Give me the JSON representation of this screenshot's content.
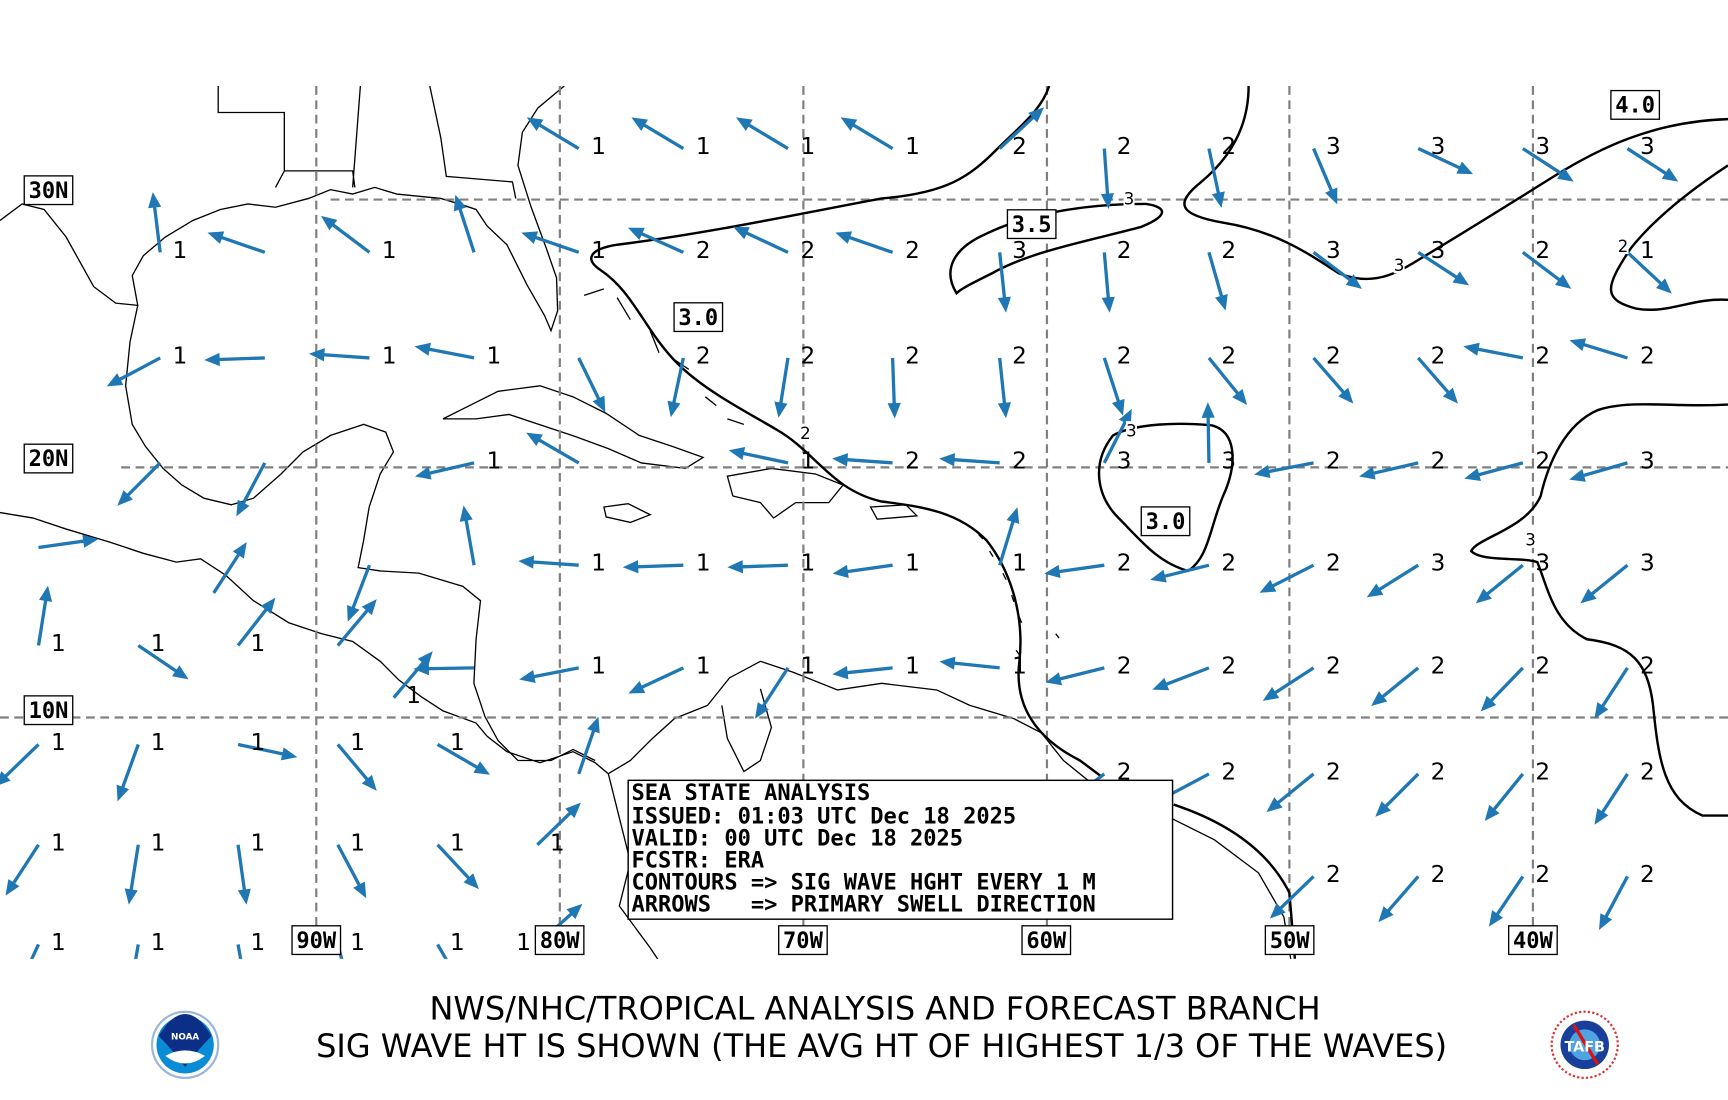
{
  "colors": {
    "arrow": "#1f77b4",
    "contour": "#000000",
    "grid": "#808080"
  },
  "map": {
    "lat_labels": [
      {
        "text": "30N",
        "lat": 30
      },
      {
        "text": "20N",
        "lat": 20
      },
      {
        "text": "10N",
        "lat": 10
      }
    ],
    "lon_labels": [
      {
        "text": "90W",
        "lon": 90
      },
      {
        "text": "80W",
        "lon": 80
      },
      {
        "text": "70W",
        "lon": 70
      },
      {
        "text": "60W",
        "lon": 60
      },
      {
        "text": "50W",
        "lon": 50
      },
      {
        "text": "40W",
        "lon": 40
      }
    ],
    "contour_box_labels": [
      {
        "text": "3.0",
        "lon": 74.3,
        "lat": 25.7
      },
      {
        "text": "3.5",
        "lon": 60.6,
        "lat": 29.1
      },
      {
        "text": "3.0",
        "lon": 55.1,
        "lat": 17.9
      },
      {
        "text": "4.0",
        "lon": 35.8,
        "lat": 33.3
      }
    ],
    "contour_inline_labels": [
      {
        "text": "3",
        "lon": 56.6,
        "lat": 30.0
      },
      {
        "text": "3",
        "lon": 45.5,
        "lat": 27.6
      },
      {
        "text": "3",
        "lon": 56.5,
        "lat": 21.4
      },
      {
        "text": "3",
        "lon": 40.1,
        "lat": 16.9
      },
      {
        "text": "2",
        "lon": 69.9,
        "lat": 21.3
      },
      {
        "text": "2",
        "lon": 36.3,
        "lat": 28.3
      }
    ],
    "wave_points_note_fields": [
      "lon_W",
      "sig_wave_height_m",
      "swell_direction_toward_deg"
    ],
    "wave_rows": [
      {
        "lat": 31.9,
        "points": [
          [
            78.4,
            "1",
            301
          ],
          [
            74.1,
            "1",
            301
          ],
          [
            69.8,
            "1",
            301
          ],
          [
            65.5,
            "1",
            301
          ],
          [
            61.1,
            "2",
            47
          ],
          [
            56.8,
            "2",
            176
          ],
          [
            52.5,
            "2",
            168
          ],
          [
            48.2,
            "3",
            157
          ],
          [
            43.9,
            "3",
            115
          ],
          [
            39.6,
            "3",
            123
          ],
          [
            35.3,
            "3",
            123
          ]
        ]
      },
      {
        "lat": 28.2,
        "points": [
          [
            95.6,
            "1",
            353
          ],
          [
            91.3,
            "",
            289
          ],
          [
            87.0,
            "1",
            307
          ],
          [
            82.7,
            "",
            342
          ],
          [
            78.4,
            "1",
            289
          ],
          [
            74.1,
            "2",
            294
          ],
          [
            69.8,
            "2",
            295
          ],
          [
            65.5,
            "2",
            289
          ],
          [
            61.1,
            "3",
            174
          ],
          [
            56.8,
            "2",
            175
          ],
          [
            52.5,
            "2",
            164
          ],
          [
            48.2,
            "3",
            127
          ],
          [
            43.9,
            "3",
            123
          ],
          [
            39.6,
            "2",
            127
          ],
          [
            35.3,
            "1",
            133
          ]
        ]
      },
      {
        "lat": 24.3,
        "points": [
          [
            95.6,
            "1",
            242
          ],
          [
            91.3,
            "",
            268
          ],
          [
            87.0,
            "1",
            274
          ],
          [
            82.7,
            "1",
            281
          ],
          [
            78.4,
            "",
            154
          ],
          [
            74.1,
            "2",
            192
          ],
          [
            69.8,
            "2",
            189
          ],
          [
            65.5,
            "2",
            178
          ],
          [
            61.1,
            "2",
            174
          ],
          [
            56.8,
            "2",
            162
          ],
          [
            52.5,
            "2",
            141
          ],
          [
            48.2,
            "2",
            139
          ],
          [
            43.9,
            "2",
            139
          ],
          [
            39.6,
            "2",
            281
          ],
          [
            35.3,
            "2",
            287
          ]
        ]
      },
      {
        "lat": 20.3,
        "points": [
          [
            95.6,
            "",
            225
          ],
          [
            91.3,
            "",
            208
          ],
          [
            82.7,
            "1",
            257
          ],
          [
            78.4,
            "",
            300
          ],
          [
            69.8,
            "1",
            282
          ],
          [
            65.5,
            "2",
            274
          ],
          [
            61.1,
            "2",
            274
          ],
          [
            56.8,
            "3",
            27
          ],
          [
            52.5,
            "3",
            359
          ],
          [
            48.2,
            "2",
            259
          ],
          [
            43.9,
            "2",
            257
          ],
          [
            39.6,
            "2",
            255
          ],
          [
            35.3,
            "3",
            254
          ]
        ]
      },
      {
        "lat": 17.0,
        "points": [
          [
            100.6,
            "",
            82
          ]
        ]
      },
      {
        "lat": 16.3,
        "points": [
          [
            87.0,
            "",
            201
          ],
          [
            82.7,
            "",
            350
          ],
          [
            78.4,
            "1",
            274
          ],
          [
            74.1,
            "1",
            268
          ],
          [
            69.8,
            "1",
            268
          ],
          [
            65.5,
            "1",
            262
          ],
          [
            61.1,
            "1",
            17
          ],
          [
            56.8,
            "2",
            262
          ],
          [
            52.5,
            "2",
            256
          ],
          [
            48.2,
            "2",
            243
          ],
          [
            43.9,
            "3",
            238
          ],
          [
            39.6,
            "3",
            231
          ],
          [
            35.3,
            "3",
            231
          ]
        ]
      },
      {
        "lat": 15.2,
        "points": [
          [
            93.4,
            "",
            33
          ]
        ]
      },
      {
        "lat": 13.1,
        "points": [
          [
            100.6,
            "1",
            9
          ],
          [
            96.5,
            "1",
            124
          ],
          [
            92.4,
            "1",
            38
          ],
          [
            88.3,
            "",
            40
          ]
        ]
      },
      {
        "lat": 12.2,
        "points": [
          [
            82.7,
            "",
            269
          ],
          [
            78.4,
            "1",
            259
          ],
          [
            74.1,
            "1",
            245
          ],
          [
            69.8,
            "1",
            213
          ],
          [
            65.5,
            "1",
            264
          ],
          [
            61.1,
            "1",
            276
          ],
          [
            56.8,
            "2",
            256
          ],
          [
            52.5,
            "2",
            249
          ],
          [
            48.2,
            "2",
            237
          ],
          [
            43.9,
            "2",
            231
          ],
          [
            39.6,
            "2",
            224
          ],
          [
            35.3,
            "2",
            213
          ]
        ]
      },
      {
        "lat": 11.0,
        "points": [
          [
            86.0,
            "1",
            40
          ]
        ]
      },
      {
        "lat": 9.1,
        "points": [
          [
            100.6,
            "1",
            226
          ],
          [
            96.5,
            "1",
            200
          ],
          [
            92.4,
            "1",
            102
          ],
          [
            88.3,
            "1",
            140
          ],
          [
            84.2,
            "1",
            120
          ]
        ]
      },
      {
        "lat": 7.9,
        "points": [
          [
            78.4,
            "",
            19
          ],
          [
            56.8,
            "2",
            233
          ],
          [
            52.5,
            "2",
            242
          ],
          [
            48.2,
            "2",
            231
          ],
          [
            43.9,
            "2",
            225
          ],
          [
            39.6,
            "2",
            219
          ],
          [
            35.3,
            "2",
            213
          ]
        ]
      },
      {
        "lat": 5.0,
        "points": [
          [
            100.6,
            "1",
            213
          ],
          [
            96.5,
            "1",
            189
          ],
          [
            92.4,
            "1",
            172
          ],
          [
            88.3,
            "1",
            152
          ],
          [
            84.2,
            "1",
            137
          ],
          [
            80.1,
            "1",
            46
          ]
        ]
      },
      {
        "lat": 3.7,
        "points": [
          [
            48.2,
            "2",
            226
          ],
          [
            43.9,
            "2",
            221
          ],
          [
            39.6,
            "2",
            214
          ],
          [
            35.3,
            "2",
            208
          ]
        ]
      },
      {
        "lat": 0.9,
        "points": [
          [
            100.6,
            "1",
            205
          ],
          [
            96.5,
            "1",
            190
          ],
          [
            92.4,
            "1",
            170
          ],
          [
            88.3,
            "1",
            165
          ],
          [
            84.2,
            "1",
            150
          ],
          [
            80.1,
            "1",
            48
          ]
        ]
      }
    ]
  },
  "info_box": {
    "line1": "SEA STATE ANALYSIS",
    "line2": "ISSUED: 01:03 UTC Dec 18 2025",
    "line3": "VALID: 00 UTC Dec 18 2025",
    "line4": "FCSTR: ERA",
    "line5": "CONTOURS => SIG WAVE HGHT EVERY 1 M",
    "line6": "ARROWS   => PRIMARY SWELL DIRECTION"
  },
  "footer": {
    "title1": "NWS/NHC/TROPICAL ANALYSIS AND FORECAST BRANCH",
    "title2": "SIG WAVE HT IS SHOWN (THE AVG HT OF HIGHEST 1/3 OF THE WAVES)",
    "logo_left": "NOAA",
    "logo_right": "TAFB"
  }
}
